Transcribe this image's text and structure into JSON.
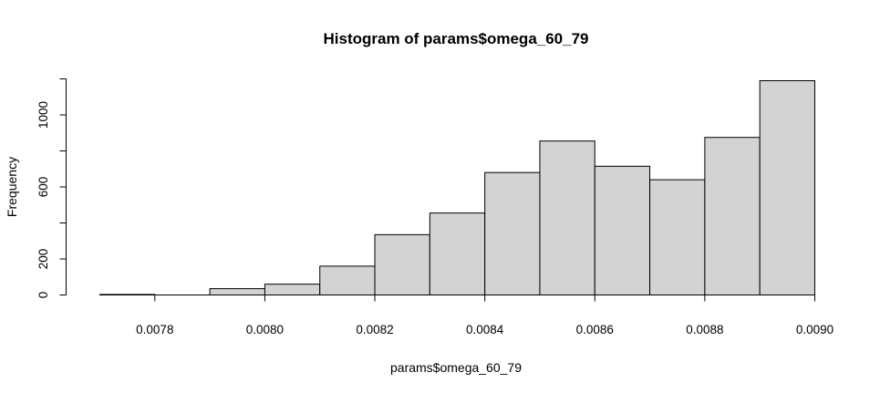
{
  "chart_data": {
    "type": "bar",
    "title": "Histogram of params$omega_60_79",
    "xlabel": "params$omega_60_79",
    "ylabel": "Frequency",
    "bins": [
      {
        "start": 0.0077,
        "end": 0.0078,
        "count": 3
      },
      {
        "start": 0.0078,
        "end": 0.0079,
        "count": 0
      },
      {
        "start": 0.0079,
        "end": 0.008,
        "count": 35
      },
      {
        "start": 0.008,
        "end": 0.0081,
        "count": 60
      },
      {
        "start": 0.0081,
        "end": 0.0082,
        "count": 160
      },
      {
        "start": 0.0082,
        "end": 0.0083,
        "count": 335
      },
      {
        "start": 0.0083,
        "end": 0.0084,
        "count": 455
      },
      {
        "start": 0.0084,
        "end": 0.0085,
        "count": 680
      },
      {
        "start": 0.0085,
        "end": 0.0086,
        "count": 855
      },
      {
        "start": 0.0086,
        "end": 0.0087,
        "count": 715
      },
      {
        "start": 0.0087,
        "end": 0.0088,
        "count": 640
      },
      {
        "start": 0.0088,
        "end": 0.0089,
        "count": 875
      },
      {
        "start": 0.0089,
        "end": 0.009,
        "count": 1190
      }
    ],
    "xlim": [
      0.0077,
      0.009
    ],
    "ylim": [
      0,
      1200
    ],
    "x_ticks": [
      "0.0078",
      "0.0080",
      "0.0082",
      "0.0084",
      "0.0086",
      "0.0088",
      "0.0090"
    ],
    "y_ticks": [
      "0",
      "200",
      "600",
      "1000"
    ],
    "grid": false,
    "colors": {
      "bar_fill": "#d3d3d3",
      "bar_stroke": "#000000"
    }
  }
}
